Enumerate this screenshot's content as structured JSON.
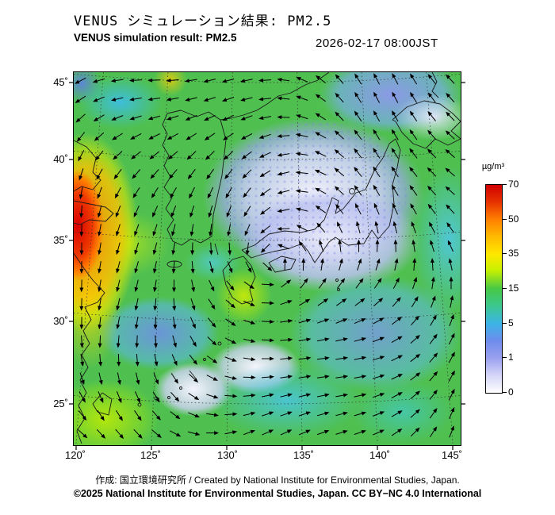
{
  "header": {
    "title_ja": "VENUS シミュレーション結果: PM2.5",
    "title_en": "VENUS simulation result: PM2.5",
    "timestamp": "2026-02-17 08:00JST"
  },
  "map": {
    "lat_ticks": [
      "45˚",
      "40˚",
      "35˚",
      "30˚",
      "25˚"
    ],
    "lon_ticks": [
      "120˚",
      "125˚",
      "130˚",
      "135˚",
      "140˚",
      "145˚"
    ]
  },
  "colorbar": {
    "unit": "µg/m³",
    "ticks": [
      "70",
      "50",
      "35",
      "15",
      "5",
      "1",
      "0"
    ]
  },
  "footer": {
    "credit": "作成:  国立環境研究所 / Created by National Institute for Environmental Studies, Japan.",
    "copyright": "©2025 National Institute for Environmental Studies, Japan. CC BY−NC 4.0 International"
  },
  "chart_data": {
    "type": "heatmap",
    "title": "VENUS simulation result: PM2.5",
    "timestamp": "2026-02-17 08:00JST",
    "unit": "µg/m³",
    "colorbar_levels": [
      0,
      1,
      5,
      15,
      35,
      50,
      70
    ],
    "colorbar_colors": [
      "#ffffff",
      "#9aa4ec",
      "#3fb7e6",
      "#46c846",
      "#ffe400",
      "#ff8c00",
      "#e00000"
    ],
    "lat_range": [
      25,
      45
    ],
    "lon_range": [
      120,
      145
    ],
    "overlay": "wind vector arrows",
    "notes": "PM2.5 surface concentration field over East Asia; high values (orange-red) along Chinese coast near 120E 33-40N, low values (white-pale blue) over Sea of Japan and central Japan"
  }
}
